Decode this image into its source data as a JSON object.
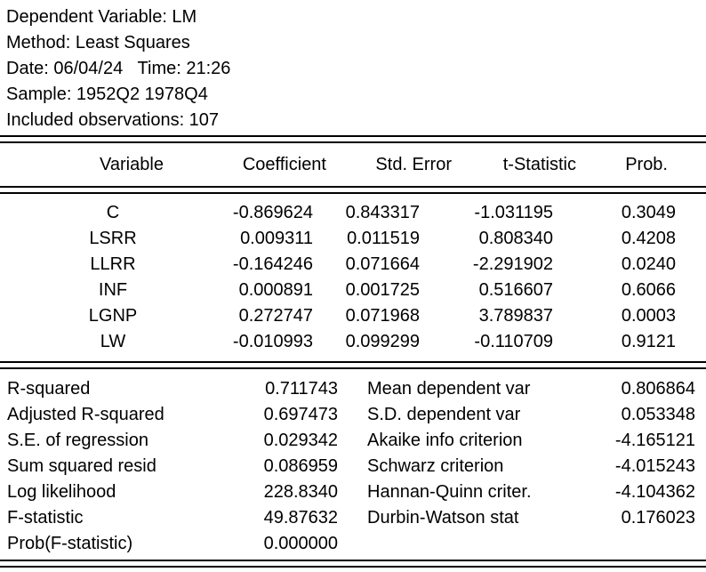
{
  "header": {
    "dependent_variable": "Dependent Variable: LM",
    "method": "Method: Least Squares",
    "date_time": "Date: 06/04/24   Time: 21:26",
    "sample": "Sample: 1952Q2 1978Q4",
    "observations": "Included observations: 107"
  },
  "coef_table": {
    "columns": [
      "Variable",
      "Coefficient",
      "Std. Error",
      "t-Statistic",
      "Prob."
    ],
    "rows": [
      {
        "variable": "C",
        "coefficient": "-0.869624",
        "std_error": "0.843317",
        "t_statistic": "-1.031195",
        "prob": "0.3049"
      },
      {
        "variable": "LSRR",
        "coefficient": "0.009311",
        "std_error": "0.011519",
        "t_statistic": "0.808340",
        "prob": "0.4208"
      },
      {
        "variable": "LLRR",
        "coefficient": "-0.164246",
        "std_error": "0.071664",
        "t_statistic": "-2.291902",
        "prob": "0.0240"
      },
      {
        "variable": "INF",
        "coefficient": "0.000891",
        "std_error": "0.001725",
        "t_statistic": "0.516607",
        "prob": "0.6066"
      },
      {
        "variable": "LGNP",
        "coefficient": "0.272747",
        "std_error": "0.071968",
        "t_statistic": "3.789837",
        "prob": "0.0003"
      },
      {
        "variable": "LW",
        "coefficient": "-0.010993",
        "std_error": "0.099299",
        "t_statistic": "-0.110709",
        "prob": "0.9121"
      }
    ]
  },
  "summary": {
    "left": [
      {
        "label": "R-squared",
        "value": "0.711743"
      },
      {
        "label": "Adjusted R-squared",
        "value": "0.697473"
      },
      {
        "label": "S.E. of regression",
        "value": "0.029342"
      },
      {
        "label": "Sum squared resid",
        "value": "0.086959"
      },
      {
        "label": "Log likelihood",
        "value": "228.8340"
      },
      {
        "label": "F-statistic",
        "value": "49.87632"
      },
      {
        "label": "Prob(F-statistic)",
        "value": "0.000000"
      }
    ],
    "right": [
      {
        "label": "Mean dependent var",
        "value": "0.806864"
      },
      {
        "label": "S.D. dependent var",
        "value": "0.053348"
      },
      {
        "label": "Akaike info criterion",
        "value": "-4.165121"
      },
      {
        "label": "Schwarz criterion",
        "value": "-4.015243"
      },
      {
        "label": "Hannan-Quinn criter.",
        "value": "-4.104362"
      },
      {
        "label": "Durbin-Watson stat",
        "value": "0.176023"
      }
    ]
  },
  "colors": {
    "text": "#000000",
    "background": "#ffffff",
    "rule": "#000000"
  }
}
